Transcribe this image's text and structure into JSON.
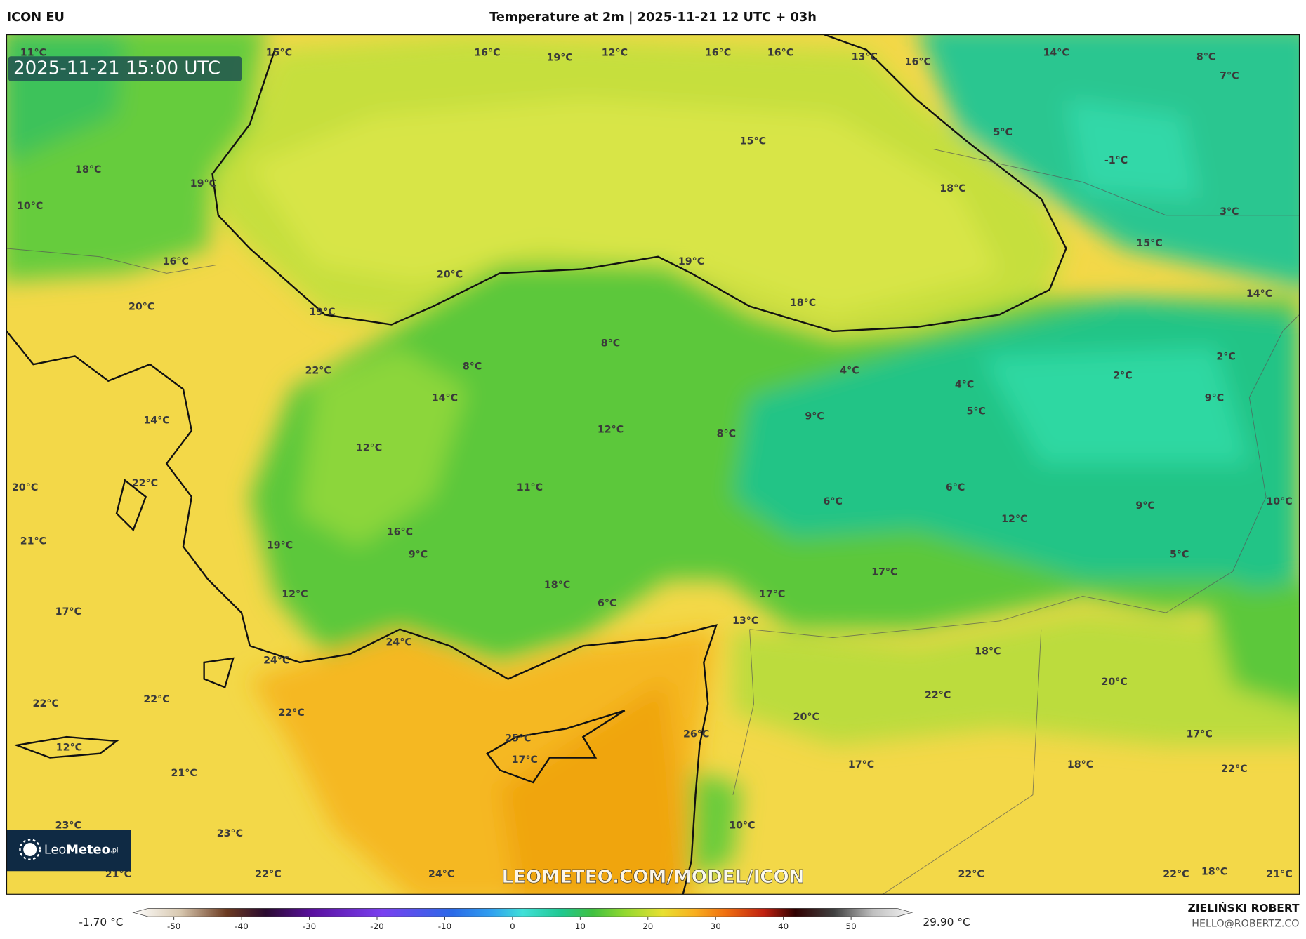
{
  "header": {
    "model": "ICON EU",
    "title": "Temperature at 2m | 2025-11-21 12 UTC + 03h"
  },
  "map": {
    "timestamp": "2025-11-21 15:00 UTC",
    "labels": [
      "11°C",
      "15°C",
      "16°C",
      "19°C",
      "12°C",
      "16°C",
      "16°C",
      "13°C",
      "16°C",
      "14°C",
      "8°C",
      "7°C",
      "15°C",
      "5°C",
      "-1°C",
      "18°C",
      "19°C",
      "18°C",
      "10°C",
      "3°C",
      "15°C",
      "16°C",
      "19°C",
      "20°C",
      "14°C",
      "20°C",
      "18°C",
      "19°C",
      "8°C",
      "8°C",
      "22°C",
      "4°C",
      "2°C",
      "2°C",
      "4°C",
      "14°C",
      "9°C",
      "5°C",
      "9°C",
      "14°C",
      "12°C",
      "8°C",
      "12°C",
      "22°C",
      "20°C",
      "11°C",
      "6°C",
      "10°C",
      "6°C",
      "9°C",
      "12°C",
      "16°C",
      "21°C",
      "19°C",
      "9°C",
      "5°C",
      "17°C",
      "18°C",
      "12°C",
      "17°C",
      "6°C",
      "17°C",
      "13°C",
      "24°C",
      "18°C",
      "24°C",
      "20°C",
      "22°C",
      "22°C",
      "22°C",
      "22°C",
      "20°C",
      "26°C",
      "17°C",
      "25°C",
      "12°C",
      "17°C",
      "17°C",
      "18°C",
      "22°C",
      "21°C",
      "23°C",
      "10°C",
      "23°C",
      "22°C",
      "24°C",
      "22°C",
      "22°C",
      "18°C",
      "21°C",
      "21°C"
    ],
    "watermark": "LEOMETEO.COM/MODEL/ICON",
    "logo": {
      "name_a": "Leo",
      "name_b": "Meteo",
      "suffix": ".pl"
    }
  },
  "colorbar": {
    "lim": [
      -56,
      59
    ],
    "ticks": [
      -50,
      -40,
      -30,
      -20,
      -10,
      0,
      10,
      20,
      30,
      40,
      50
    ],
    "min_label": "-1.70 °C",
    "max_label": "29.90 °C"
  },
  "credit": {
    "author": "ZIELIŃSKI ROBERT",
    "contact": "HELLO@ROBERTZ.CO"
  }
}
